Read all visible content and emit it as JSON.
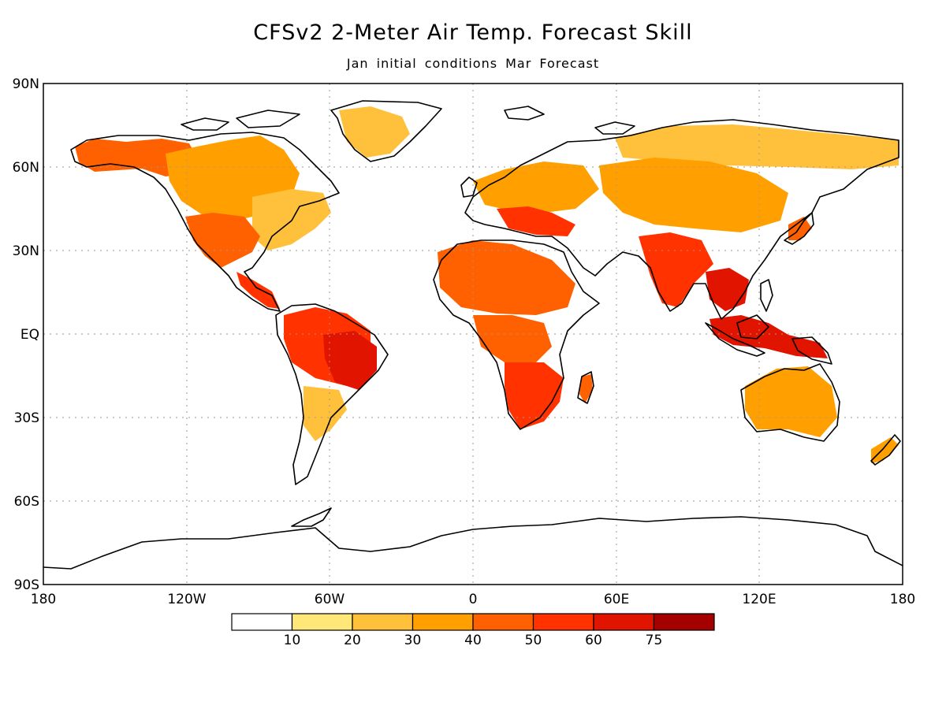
{
  "title": "CFSv2 2-Meter Air Temp. Forecast Skill",
  "subtitle": "Jan initial conditions  Mar Forecast",
  "lat_labels": [
    "90N",
    "60N",
    "30N",
    "EQ",
    "30S",
    "60S",
    "90S"
  ],
  "lon_labels": [
    "180",
    "120W",
    "60W",
    "0",
    "60E",
    "120E",
    "180"
  ],
  "colorbar": {
    "tick_labels": [
      "10",
      "20",
      "30",
      "40",
      "50",
      "60",
      "75"
    ],
    "colors": [
      "#ffffff",
      "#ffe878",
      "#ffc03c",
      "#ffa000",
      "#ff6000",
      "#ff3200",
      "#e11400",
      "#a50000"
    ]
  },
  "colors": {
    "coastline": "#000000",
    "grid": "#9a9a9a"
  },
  "skill_regions": [
    {
      "name": "Alaska / NW Canada",
      "level": 4
    },
    {
      "name": "Canada interior",
      "level": 3
    },
    {
      "name": "Eastern United States",
      "level": 2
    },
    {
      "name": "Mexico",
      "level": 4
    },
    {
      "name": "Central America",
      "level": 5
    },
    {
      "name": "Amazon basin",
      "level": 5
    },
    {
      "name": "Eastern Brazil",
      "level": 6
    },
    {
      "name": "Southern South America",
      "level": 2
    },
    {
      "name": "Greenland",
      "level": 2
    },
    {
      "name": "Europe",
      "level": 3
    },
    {
      "name": "Mediterranean / Turkey",
      "level": 5
    },
    {
      "name": "North Africa / Sahel",
      "level": 4
    },
    {
      "name": "Central Africa",
      "level": 4
    },
    {
      "name": "Southern Africa",
      "level": 5
    },
    {
      "name": "Madagascar",
      "level": 4
    },
    {
      "name": "Siberia",
      "level": 2
    },
    {
      "name": "Central Asia",
      "level": 3
    },
    {
      "name": "India",
      "level": 5
    },
    {
      "name": "Southeast Asia",
      "level": 6
    },
    {
      "name": "Indonesia / New Guinea",
      "level": 6
    },
    {
      "name": "Japan",
      "level": 4
    },
    {
      "name": "Australia",
      "level": 3
    },
    {
      "name": "New Zealand",
      "level": 3
    }
  ]
}
